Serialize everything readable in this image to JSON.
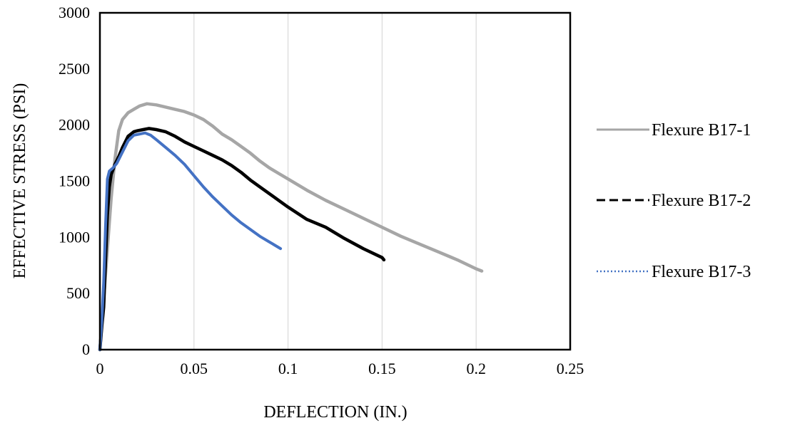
{
  "chart_data": {
    "type": "line",
    "title": "",
    "xlabel": "DEFLECTION (IN.)",
    "ylabel": "EFFECTIVE STRESS (PSI)",
    "xlim": [
      0,
      0.25
    ],
    "ylim": [
      0,
      3000
    ],
    "x_ticks": [
      "0",
      "0.05",
      "0.1",
      "0.15",
      "0.2",
      "0.25"
    ],
    "y_ticks": [
      "0",
      "500",
      "1000",
      "1500",
      "2000",
      "2500",
      "3000"
    ],
    "grid": "vertical",
    "legend_position": "right",
    "series": [
      {
        "name": "Flexure B17-1",
        "color": "#a6a6a6",
        "style": "solid",
        "x": [
          0,
          0.002,
          0.004,
          0.006,
          0.008,
          0.01,
          0.012,
          0.015,
          0.018,
          0.021,
          0.025,
          0.03,
          0.035,
          0.04,
          0.045,
          0.05,
          0.055,
          0.06,
          0.065,
          0.07,
          0.075,
          0.08,
          0.085,
          0.09,
          0.095,
          0.1,
          0.11,
          0.12,
          0.13,
          0.14,
          0.15,
          0.16,
          0.17,
          0.18,
          0.19,
          0.2,
          0.203
        ],
        "y": [
          0,
          450,
          900,
          1350,
          1700,
          1950,
          2050,
          2110,
          2140,
          2170,
          2190,
          2180,
          2160,
          2140,
          2120,
          2090,
          2050,
          1990,
          1920,
          1870,
          1810,
          1750,
          1680,
          1620,
          1570,
          1520,
          1420,
          1330,
          1250,
          1170,
          1090,
          1010,
          940,
          870,
          800,
          720,
          700
        ]
      },
      {
        "name": "Flexure B17-2",
        "color": "#000000",
        "style": "dashed",
        "x": [
          0,
          0.001,
          0.002,
          0.003,
          0.004,
          0.005,
          0.006,
          0.008,
          0.01,
          0.012,
          0.015,
          0.018,
          0.02,
          0.023,
          0.026,
          0.03,
          0.035,
          0.04,
          0.045,
          0.05,
          0.055,
          0.06,
          0.065,
          0.07,
          0.075,
          0.08,
          0.085,
          0.09,
          0.095,
          0.1,
          0.11,
          0.12,
          0.13,
          0.14,
          0.15,
          0.151
        ],
        "y": [
          0,
          200,
          380,
          800,
          1200,
          1450,
          1560,
          1650,
          1720,
          1800,
          1900,
          1940,
          1950,
          1960,
          1970,
          1960,
          1940,
          1900,
          1850,
          1810,
          1770,
          1730,
          1690,
          1640,
          1580,
          1510,
          1450,
          1390,
          1330,
          1270,
          1160,
          1090,
          990,
          900,
          820,
          800
        ]
      },
      {
        "name": "Flexure B17-3",
        "color": "#4472c4",
        "style": "dotted",
        "x": [
          0,
          0.001,
          0.002,
          0.003,
          0.004,
          0.005,
          0.007,
          0.009,
          0.012,
          0.015,
          0.018,
          0.021,
          0.024,
          0.027,
          0.03,
          0.035,
          0.04,
          0.045,
          0.05,
          0.055,
          0.06,
          0.065,
          0.07,
          0.075,
          0.08,
          0.085,
          0.09,
          0.095,
          0.096
        ],
        "y": [
          0,
          250,
          600,
          1100,
          1520,
          1590,
          1620,
          1660,
          1760,
          1860,
          1910,
          1920,
          1930,
          1910,
          1870,
          1800,
          1730,
          1650,
          1550,
          1450,
          1360,
          1280,
          1200,
          1130,
          1070,
          1010,
          960,
          910,
          900
        ]
      }
    ]
  }
}
